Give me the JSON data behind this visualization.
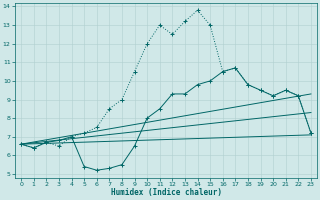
{
  "xlabel": "Humidex (Indice chaleur)",
  "bg_color": "#d0e8e8",
  "grid_color": "#b0d0d0",
  "line_color": "#006666",
  "xlim": [
    -0.5,
    23.5
  ],
  "ylim": [
    4.8,
    14.2
  ],
  "xticks": [
    0,
    1,
    2,
    3,
    4,
    5,
    6,
    7,
    8,
    9,
    10,
    11,
    12,
    13,
    14,
    15,
    16,
    17,
    18,
    19,
    20,
    21,
    22,
    23
  ],
  "yticks": [
    5,
    6,
    7,
    8,
    9,
    10,
    11,
    12,
    13,
    14
  ],
  "dotted_x": [
    0,
    1,
    2,
    3,
    4,
    5,
    6,
    7,
    8,
    9,
    10,
    11,
    12,
    13,
    14,
    15,
    16,
    17,
    18,
    19,
    20,
    21,
    22,
    23
  ],
  "dotted_y": [
    6.6,
    6.4,
    6.7,
    6.5,
    7.0,
    7.2,
    7.5,
    8.5,
    9.0,
    10.5,
    12.0,
    13.0,
    12.5,
    13.2,
    13.8,
    13.0,
    10.5,
    10.7,
    9.8,
    9.5,
    9.2,
    9.5,
    9.2,
    7.2
  ],
  "solid_x": [
    0,
    1,
    2,
    3,
    4,
    5,
    6,
    7,
    8,
    9,
    10,
    11,
    12,
    13,
    14,
    15,
    16,
    17,
    18,
    19,
    20,
    21,
    22,
    23
  ],
  "solid_y": [
    6.6,
    6.4,
    6.7,
    6.8,
    7.0,
    5.4,
    5.2,
    5.3,
    5.5,
    6.5,
    8.0,
    8.5,
    9.3,
    9.3,
    9.8,
    10.0,
    10.5,
    10.7,
    9.8,
    9.5,
    9.2,
    9.5,
    9.2,
    7.2
  ],
  "trend1_x": [
    0,
    23
  ],
  "trend1_y": [
    6.6,
    7.1
  ],
  "trend2_x": [
    0,
    23
  ],
  "trend2_y": [
    6.6,
    8.3
  ],
  "trend3_x": [
    0,
    23
  ],
  "trend3_y": [
    6.6,
    9.3
  ]
}
